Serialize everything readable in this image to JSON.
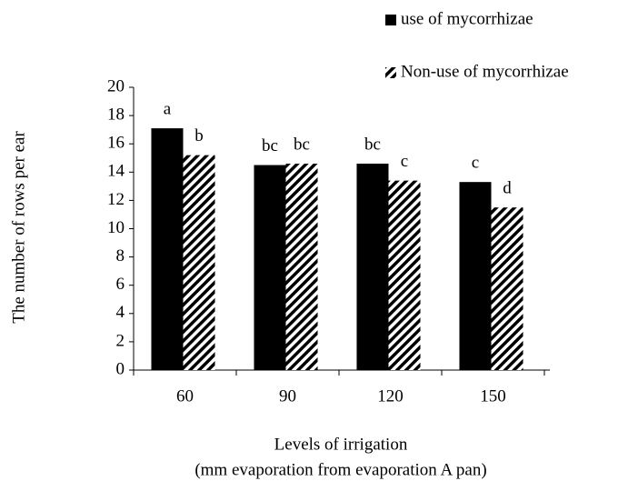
{
  "chart_data": {
    "type": "bar",
    "x_label": "Levels of irrigation",
    "x_label_sub": "(mm evaporation from evaporation A pan)",
    "y_label": "The number of rows per ear",
    "categories": [
      "60",
      "90",
      "120",
      "150"
    ],
    "series": [
      {
        "name": "use of mycorrhizae",
        "color": "#000000",
        "fill": "solid",
        "values": [
          17.1,
          14.5,
          14.6,
          13.3
        ],
        "letters": [
          "a",
          "bc",
          "bc",
          "c"
        ]
      },
      {
        "name": "Non-use of mycorrhizae",
        "color": "#000000",
        "fill": "hatch",
        "values": [
          15.2,
          14.6,
          13.4,
          11.5
        ],
        "letters": [
          "b",
          "bc",
          "c",
          "d"
        ]
      }
    ],
    "ylim": [
      0,
      20
    ],
    "yticks": [
      0,
      2,
      4,
      6,
      8,
      10,
      12,
      14,
      16,
      18,
      20
    ],
    "grid": false,
    "legend": "top-right"
  }
}
